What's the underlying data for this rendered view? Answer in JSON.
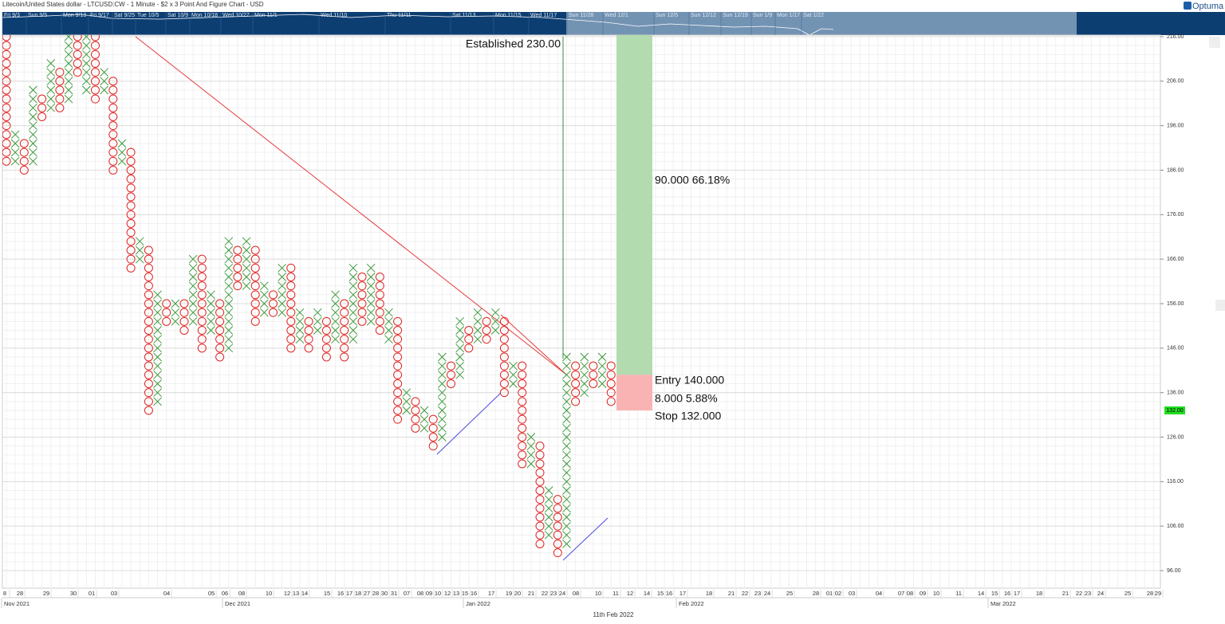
{
  "chart_data": {
    "type": "point_and_figure",
    "title": "Litecoin/United States dollar - LTCUSD:CW - 1 Minute - $2 x 3 Point And Figure Chart - USD",
    "brand": "Optuma",
    "box_size": 2,
    "x_color": "#3c9a3c",
    "o_color": "#e02424",
    "ylim": [
      96,
      216
    ],
    "yticks": [
      {
        "value": 216,
        "label": "216.00"
      },
      {
        "value": 206,
        "label": "206.00"
      },
      {
        "value": 196,
        "label": "196.00"
      },
      {
        "value": 186,
        "label": "186.00"
      },
      {
        "value": 176,
        "label": "176.00"
      },
      {
        "value": 166,
        "label": "166.00"
      },
      {
        "value": 156,
        "label": "156.00"
      },
      {
        "value": 146,
        "label": "146.00"
      },
      {
        "value": 136,
        "label": "136.00"
      },
      {
        "value": 126,
        "label": "126.00"
      },
      {
        "value": 116,
        "label": "116.00"
      },
      {
        "value": 106,
        "label": "106.00"
      },
      {
        "value": 96,
        "label": "96.00"
      }
    ],
    "last_price": {
      "value": 132,
      "label": "132.00"
    },
    "columns": [
      {
        "type": "O",
        "high": 216,
        "low": 188
      },
      {
        "type": "X",
        "high": 194,
        "low": 188
      },
      {
        "type": "O",
        "high": 192,
        "low": 186
      },
      {
        "type": "X",
        "high": 204,
        "low": 188
      },
      {
        "type": "O",
        "high": 202,
        "low": 198
      },
      {
        "type": "X",
        "high": 210,
        "low": 200
      },
      {
        "type": "O",
        "high": 208,
        "low": 200
      },
      {
        "type": "X",
        "high": 216,
        "low": 202
      },
      {
        "type": "O",
        "high": 216,
        "low": 208
      },
      {
        "type": "X",
        "high": 216,
        "low": 204
      },
      {
        "type": "O",
        "high": 216,
        "low": 202
      },
      {
        "type": "X",
        "high": 208,
        "low": 204
      },
      {
        "type": "O",
        "high": 206,
        "low": 186
      },
      {
        "type": "X",
        "high": 192,
        "low": 188
      },
      {
        "type": "O",
        "high": 190,
        "low": 164
      },
      {
        "type": "X",
        "high": 170,
        "low": 166
      },
      {
        "type": "O",
        "high": 168,
        "low": 132
      },
      {
        "type": "X",
        "high": 158,
        "low": 134
      },
      {
        "type": "O",
        "high": 156,
        "low": 152
      },
      {
        "type": "X",
        "high": 156,
        "low": 152
      },
      {
        "type": "O",
        "high": 156,
        "low": 150
      },
      {
        "type": "X",
        "high": 166,
        "low": 152
      },
      {
        "type": "O",
        "high": 166,
        "low": 146
      },
      {
        "type": "X",
        "high": 158,
        "low": 150
      },
      {
        "type": "O",
        "high": 156,
        "low": 144
      },
      {
        "type": "X",
        "high": 170,
        "low": 146
      },
      {
        "type": "O",
        "high": 168,
        "low": 160
      },
      {
        "type": "X",
        "high": 170,
        "low": 160
      },
      {
        "type": "O",
        "high": 168,
        "low": 152
      },
      {
        "type": "X",
        "high": 160,
        "low": 154
      },
      {
        "type": "O",
        "high": 158,
        "low": 154
      },
      {
        "type": "X",
        "high": 164,
        "low": 154
      },
      {
        "type": "O",
        "high": 164,
        "low": 146
      },
      {
        "type": "X",
        "high": 154,
        "low": 148
      },
      {
        "type": "O",
        "high": 152,
        "low": 146
      },
      {
        "type": "X",
        "high": 154,
        "low": 150
      },
      {
        "type": "O",
        "high": 152,
        "low": 144
      },
      {
        "type": "X",
        "high": 158,
        "low": 148
      },
      {
        "type": "O",
        "high": 156,
        "low": 144
      },
      {
        "type": "X",
        "high": 164,
        "low": 148
      },
      {
        "type": "O",
        "high": 162,
        "low": 152
      },
      {
        "type": "X",
        "high": 164,
        "low": 152
      },
      {
        "type": "O",
        "high": 162,
        "low": 150
      },
      {
        "type": "X",
        "high": 154,
        "low": 148
      },
      {
        "type": "O",
        "high": 152,
        "low": 130
      },
      {
        "type": "X",
        "high": 136,
        "low": 132
      },
      {
        "type": "O",
        "high": 134,
        "low": 128
      },
      {
        "type": "X",
        "high": 132,
        "low": 128
      },
      {
        "type": "O",
        "high": 130,
        "low": 124
      },
      {
        "type": "X",
        "high": 144,
        "low": 126
      },
      {
        "type": "O",
        "high": 142,
        "low": 138
      },
      {
        "type": "X",
        "high": 152,
        "low": 140
      },
      {
        "type": "O",
        "high": 150,
        "low": 146
      },
      {
        "type": "X",
        "high": 154,
        "low": 148
      },
      {
        "type": "O",
        "high": 152,
        "low": 148
      },
      {
        "type": "X",
        "high": 154,
        "low": 150
      },
      {
        "type": "O",
        "high": 152,
        "low": 136
      },
      {
        "type": "X",
        "high": 142,
        "low": 138
      },
      {
        "type": "O",
        "high": 142,
        "low": 120
      },
      {
        "type": "X",
        "high": 126,
        "low": 120
      },
      {
        "type": "O",
        "high": 124,
        "low": 102
      },
      {
        "type": "X",
        "high": 114,
        "low": 104
      },
      {
        "type": "O",
        "high": 112,
        "low": 100
      },
      {
        "type": "X",
        "high": 144,
        "low": 102
      },
      {
        "type": "O",
        "high": 142,
        "low": 134
      },
      {
        "type": "X",
        "high": 144,
        "low": 136
      },
      {
        "type": "O",
        "high": 142,
        "low": 138
      },
      {
        "type": "X",
        "high": 144,
        "low": 138
      },
      {
        "type": "O",
        "high": 142,
        "low": 134
      }
    ],
    "target": 230,
    "entry": 140,
    "stop": 132,
    "annotations": {
      "established": "Established 230.00",
      "gain": "90.000   66.18%",
      "entry": "Entry  140.000",
      "risk": "8.000   5.88%",
      "stop": "Stop  132.000"
    },
    "day_labels": [
      "8",
      "28",
      "29",
      "30",
      "01",
      "03",
      "04",
      "05",
      "06",
      "08",
      "10",
      "12",
      "13",
      "14",
      "15",
      "16",
      "17",
      "18",
      "27",
      "28",
      "30",
      "31",
      "07",
      "08",
      "09",
      "10",
      "12",
      "13",
      "15",
      "16",
      "17",
      "19",
      "20",
      "21",
      "22",
      "23",
      "24",
      "08",
      "10",
      "11",
      "12",
      "14",
      "15",
      "16",
      "17",
      "18",
      "21",
      "22",
      "23",
      "24",
      "25",
      "28",
      "01",
      "02",
      "03",
      "04",
      "07",
      "08",
      "09",
      "10",
      "11",
      "14",
      "15",
      "16",
      "17",
      "18",
      "21",
      "22",
      "23",
      "24",
      "25",
      "28",
      "29"
    ],
    "month_labels": [
      "Nov 2021",
      "Dec 2021",
      "Jan 2022",
      "Feb 2022",
      "Mar 2022"
    ],
    "cursor_date": "11th Feb 2022",
    "navigator_labels": [
      "Fri 9/3",
      "Sun 9/5",
      "Mon 9/13",
      "Fri 9/17",
      "Sat 9/25",
      "Tue 10/5",
      "Sat 10/9",
      "Mon 10/18",
      "Wed 10/27",
      "Mon 11/1",
      "Wed 11/10",
      "Thu 11/11",
      "Sat 11/13",
      "Mon 11/15",
      "Wed 11/17",
      "Sun 11/28",
      "Wed 12/1",
      "Sun 12/5",
      "Sun 12/12",
      "Sun 12/19",
      "Sun 1/9",
      "Mon 1/17",
      "Sat 1/22"
    ]
  }
}
